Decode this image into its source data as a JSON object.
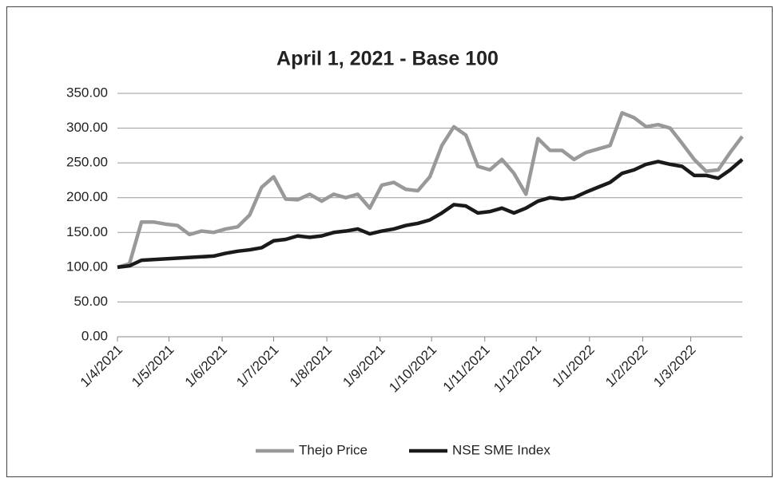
{
  "chart_data": {
    "type": "line",
    "title": "April 1, 2021 - Base 100",
    "x": [
      "2021-04-01",
      "2021-04-08",
      "2021-04-15",
      "2021-04-22",
      "2021-04-29",
      "2021-05-06",
      "2021-05-13",
      "2021-05-20",
      "2021-05-27",
      "2021-06-03",
      "2021-06-10",
      "2021-06-17",
      "2021-06-24",
      "2021-07-01",
      "2021-07-08",
      "2021-07-15",
      "2021-07-22",
      "2021-07-29",
      "2021-08-05",
      "2021-08-12",
      "2021-08-19",
      "2021-08-26",
      "2021-09-02",
      "2021-09-09",
      "2021-09-16",
      "2021-09-23",
      "2021-09-30",
      "2021-10-07",
      "2021-10-14",
      "2021-10-21",
      "2021-10-28",
      "2021-11-04",
      "2021-11-11",
      "2021-11-18",
      "2021-11-25",
      "2021-12-02",
      "2021-12-09",
      "2021-12-16",
      "2021-12-23",
      "2021-12-30",
      "2022-01-06",
      "2022-01-13",
      "2022-01-20",
      "2022-01-27",
      "2022-02-03",
      "2022-02-10",
      "2022-02-17",
      "2022-02-24",
      "2022-03-03",
      "2022-03-10",
      "2022-03-17",
      "2022-03-24",
      "2022-03-31"
    ],
    "series": [
      {
        "name": "Thejo Price",
        "color": "#999999",
        "values": [
          100,
          105,
          165,
          165,
          162,
          160,
          147,
          152,
          150,
          155,
          158,
          175,
          215,
          230,
          198,
          197,
          205,
          195,
          205,
          200,
          205,
          185,
          218,
          222,
          212,
          210,
          230,
          275,
          302,
          290,
          245,
          240,
          255,
          235,
          205,
          285,
          268,
          268,
          255,
          265,
          270,
          275,
          322,
          315,
          302,
          305,
          300,
          278,
          255,
          238,
          240,
          265,
          288
        ]
      },
      {
        "name": "NSE SME Index",
        "color": "#1a1a1a",
        "values": [
          100,
          102,
          110,
          111,
          112,
          113,
          114,
          115,
          116,
          120,
          123,
          125,
          128,
          138,
          140,
          145,
          143,
          145,
          150,
          152,
          155,
          148,
          152,
          155,
          160,
          163,
          168,
          178,
          190,
          188,
          178,
          180,
          185,
          178,
          185,
          195,
          200,
          198,
          200,
          208,
          215,
          222,
          235,
          240,
          248,
          252,
          248,
          245,
          232,
          232,
          228,
          240,
          255
        ]
      }
    ],
    "xlim": [
      "2021-04-01",
      "2022-03-31"
    ],
    "xticks": [
      {
        "value": "2021-04-01",
        "label": "1/4/2021"
      },
      {
        "value": "2021-05-01",
        "label": "1/5/2021"
      },
      {
        "value": "2021-06-01",
        "label": "1/6/2021"
      },
      {
        "value": "2021-07-01",
        "label": "1/7/2021"
      },
      {
        "value": "2021-08-01",
        "label": "1/8/2021"
      },
      {
        "value": "2021-09-01",
        "label": "1/9/2021"
      },
      {
        "value": "2021-10-01",
        "label": "1/10/2021"
      },
      {
        "value": "2021-11-01",
        "label": "1/11/2021"
      },
      {
        "value": "2021-12-01",
        "label": "1/12/2021"
      },
      {
        "value": "2022-01-01",
        "label": "1/1/2022"
      },
      {
        "value": "2022-02-01",
        "label": "1/2/2022"
      },
      {
        "value": "2022-03-01",
        "label": "1/3/2022"
      }
    ],
    "ylim": [
      0,
      350
    ],
    "yticks": [
      {
        "value": 0,
        "label": "0.00"
      },
      {
        "value": 50,
        "label": "50.00"
      },
      {
        "value": 100,
        "label": "100.00"
      },
      {
        "value": 150,
        "label": "150.00"
      },
      {
        "value": 200,
        "label": "200.00"
      },
      {
        "value": 250,
        "label": "250.00"
      },
      {
        "value": 300,
        "label": "300.00"
      },
      {
        "value": 350,
        "label": "350.00"
      }
    ],
    "grid": true,
    "legend": "bottom"
  }
}
